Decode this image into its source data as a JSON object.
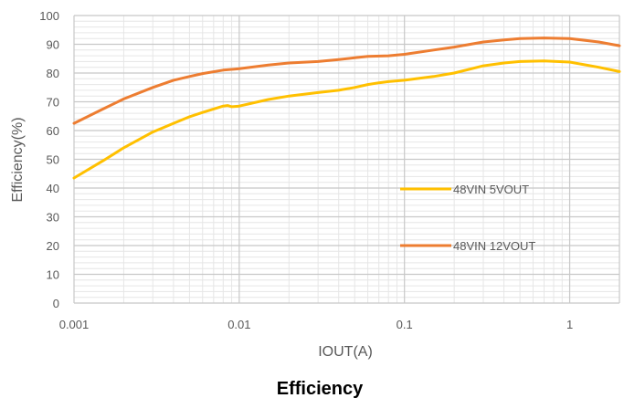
{
  "chart_data": {
    "type": "line",
    "caption": "Efficiency",
    "xlabel": "IOUT(A)",
    "ylabel": "Efficiency(%)",
    "x_scale": "log",
    "xlim": [
      0.001,
      2
    ],
    "ylim": [
      0,
      100
    ],
    "x_ticks": [
      0.001,
      0.01,
      0.1,
      1
    ],
    "x_tick_labels": [
      "0.001",
      "0.01",
      "0.1",
      "1"
    ],
    "y_ticks": [
      0,
      10,
      20,
      30,
      40,
      50,
      60,
      70,
      80,
      90,
      100
    ],
    "y_tick_labels": [
      "0",
      "10",
      "20",
      "30",
      "40",
      "50",
      "60",
      "70",
      "80",
      "90",
      "100"
    ],
    "grid": "major and minor",
    "legend_position": "inside right",
    "series": [
      {
        "name": "48VIN 5VOUT",
        "color": "#FFC000",
        "x": [
          0.001,
          0.0015,
          0.002,
          0.003,
          0.004,
          0.005,
          0.006,
          0.007,
          0.008,
          0.0085,
          0.009,
          0.01,
          0.015,
          0.02,
          0.03,
          0.04,
          0.05,
          0.06,
          0.07,
          0.08,
          0.1,
          0.15,
          0.2,
          0.3,
          0.4,
          0.5,
          0.7,
          1.0,
          1.5,
          2.0
        ],
        "y": [
          43.5,
          49.5,
          54,
          59.5,
          62.5,
          64.8,
          66.3,
          67.5,
          68.5,
          68.7,
          68.3,
          68.5,
          70.8,
          72,
          73.2,
          74,
          75,
          76,
          76.6,
          77,
          77.5,
          78.8,
          80,
          82.5,
          83.5,
          84,
          84.2,
          83.8,
          82,
          80.5
        ]
      },
      {
        "name": "48VIN 12VOUT",
        "color": "#ED7D31",
        "x": [
          0.001,
          0.0015,
          0.002,
          0.003,
          0.004,
          0.005,
          0.006,
          0.008,
          0.01,
          0.015,
          0.02,
          0.03,
          0.04,
          0.05,
          0.06,
          0.08,
          0.1,
          0.15,
          0.2,
          0.3,
          0.4,
          0.5,
          0.7,
          1.0,
          1.5,
          2.0
        ],
        "y": [
          62.5,
          67.5,
          71,
          75,
          77.5,
          78.8,
          79.8,
          81,
          81.5,
          82.8,
          83.5,
          84,
          84.7,
          85.3,
          85.8,
          86,
          86.5,
          88,
          89,
          90.8,
          91.5,
          92,
          92.2,
          92,
          90.8,
          89.5
        ]
      }
    ]
  }
}
